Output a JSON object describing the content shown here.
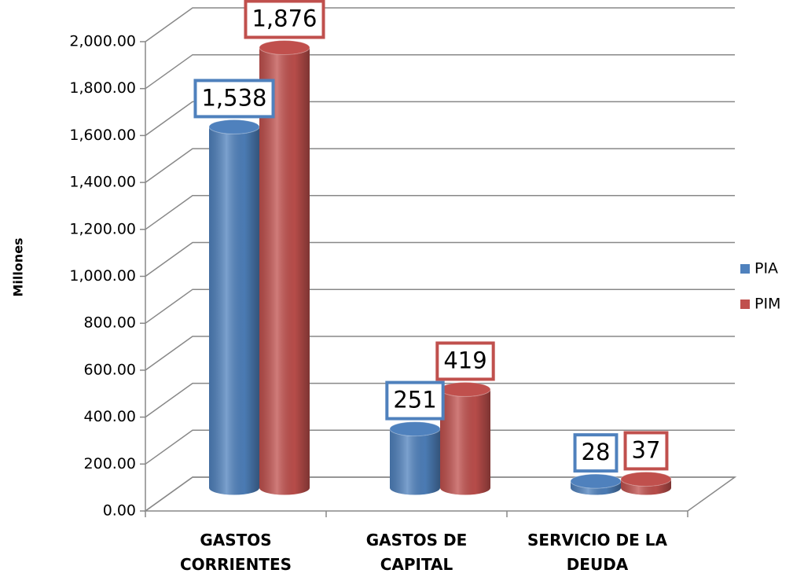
{
  "chart_data": {
    "type": "bar3d",
    "y_label": "Millones",
    "categories": [
      "GASTOS CORRIENTES",
      "GASTOS DE CAPITAL",
      "SERVICIO DE LA DEUDA"
    ],
    "series": [
      {
        "name": "PIA",
        "color": "#4f81bd",
        "values": [
          1538,
          251,
          28
        ],
        "value_labels": [
          "1,538",
          "251",
          "28"
        ]
      },
      {
        "name": "PIM",
        "color": "#c0504d",
        "values": [
          1876,
          419,
          37
        ],
        "value_labels": [
          "1,876",
          "419",
          "37"
        ]
      }
    ],
    "ylim": [
      0,
      2000
    ],
    "yticks": [
      {
        "value": 0,
        "label": "0.00"
      },
      {
        "value": 200,
        "label": "200.00"
      },
      {
        "value": 400,
        "label": "400.00"
      },
      {
        "value": 600,
        "label": "600.00"
      },
      {
        "value": 800,
        "label": "800.00"
      },
      {
        "value": 1000,
        "label": "1,000.00"
      },
      {
        "value": 1200,
        "label": "1,200.00"
      },
      {
        "value": 1400,
        "label": "1,400.00"
      },
      {
        "value": 1600,
        "label": "1,600.00"
      },
      {
        "value": 1800,
        "label": "1,800.00"
      },
      {
        "value": 2000,
        "label": "2,000.00"
      }
    ],
    "grid": true,
    "legend": "right"
  }
}
